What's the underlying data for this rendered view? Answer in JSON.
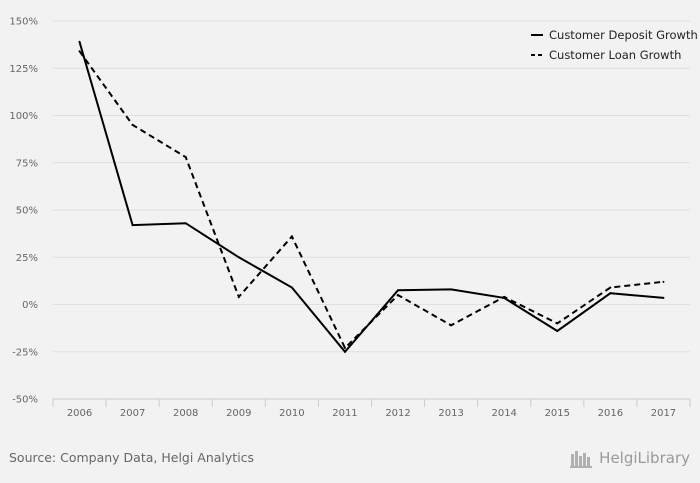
{
  "chart_data": {
    "type": "line",
    "categories": [
      "2006",
      "2007",
      "2008",
      "2009",
      "2010",
      "2011",
      "2012",
      "2013",
      "2014",
      "2015",
      "2016",
      "2017"
    ],
    "series": [
      {
        "name": "Customer Deposit Growth",
        "style": "solid",
        "values": [
          139,
          42,
          43,
          25,
          9,
          -25,
          7.5,
          8,
          3.5,
          -14,
          6,
          3.5
        ]
      },
      {
        "name": "Customer Loan Growth",
        "style": "dashed",
        "values": [
          134,
          95,
          78,
          4,
          36,
          -23,
          5,
          -11,
          4,
          -10,
          9,
          12
        ]
      }
    ],
    "ylim": [
      -50,
      150
    ],
    "yticks": [
      -50,
      -25,
      0,
      25,
      50,
      75,
      100,
      125,
      150
    ],
    "ytick_labels": [
      "-50%",
      "-25%",
      "0%",
      "25%",
      "50%",
      "75%",
      "100%",
      "125%",
      "150%"
    ],
    "grid": true,
    "legend_position": "top-right",
    "line_color": "#000000"
  },
  "footer": {
    "source": "Source: Company Data, Helgi Analytics",
    "brand": "HelgiLibrary"
  }
}
